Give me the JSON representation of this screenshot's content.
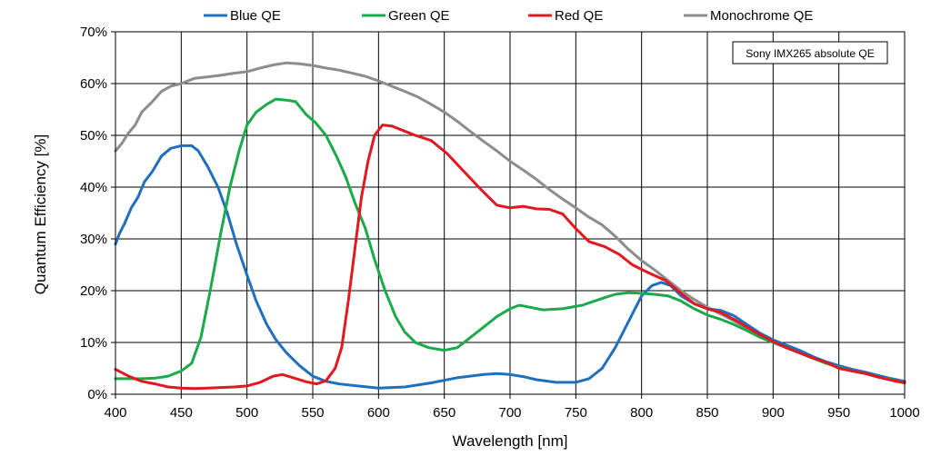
{
  "chart_data": {
    "type": "line",
    "xlabel": "Wavelength [nm]",
    "ylabel": "Quantum Efficiency [%]",
    "xlim": [
      400,
      1000
    ],
    "ylim": [
      0,
      70
    ],
    "xticks": [
      400,
      450,
      500,
      550,
      600,
      650,
      700,
      750,
      800,
      850,
      900,
      950,
      1000
    ],
    "yticks": [
      0,
      10,
      20,
      30,
      40,
      50,
      60,
      70
    ],
    "ytick_labels": [
      "0%",
      "10%",
      "20%",
      "30%",
      "40%",
      "50%",
      "60%",
      "70%"
    ],
    "grid": true,
    "legend_position": "top",
    "annotation": "Sony IMX265 absolute QE",
    "series": [
      {
        "name": "Blue QE",
        "color": "#1f6fbf",
        "points": [
          [
            400,
            29
          ],
          [
            403,
            31
          ],
          [
            407,
            33
          ],
          [
            412,
            36
          ],
          [
            417,
            38
          ],
          [
            422,
            41
          ],
          [
            428,
            43
          ],
          [
            435,
            46
          ],
          [
            442,
            47.5
          ],
          [
            450,
            48
          ],
          [
            458,
            48
          ],
          [
            463,
            47
          ],
          [
            470,
            44
          ],
          [
            478,
            40
          ],
          [
            485,
            35
          ],
          [
            492,
            29
          ],
          [
            500,
            23
          ],
          [
            507,
            18
          ],
          [
            515,
            13.5
          ],
          [
            522,
            10.5
          ],
          [
            530,
            8
          ],
          [
            540,
            5.5
          ],
          [
            550,
            3.5
          ],
          [
            560,
            2.5
          ],
          [
            570,
            2
          ],
          [
            580,
            1.7
          ],
          [
            600,
            1.2
          ],
          [
            620,
            1.4
          ],
          [
            640,
            2.2
          ],
          [
            660,
            3.2
          ],
          [
            680,
            3.8
          ],
          [
            690,
            4
          ],
          [
            700,
            3.8
          ],
          [
            710,
            3.4
          ],
          [
            720,
            2.8
          ],
          [
            735,
            2.3
          ],
          [
            750,
            2.3
          ],
          [
            760,
            3
          ],
          [
            770,
            5
          ],
          [
            780,
            9
          ],
          [
            790,
            14
          ],
          [
            800,
            19
          ],
          [
            808,
            21
          ],
          [
            815,
            21.6
          ],
          [
            822,
            21
          ],
          [
            830,
            19
          ],
          [
            840,
            17.5
          ],
          [
            850,
            16.5
          ],
          [
            860,
            16.2
          ],
          [
            870,
            15.2
          ],
          [
            880,
            13.5
          ],
          [
            890,
            11.8
          ],
          [
            900,
            10.5
          ],
          [
            910,
            9.5
          ],
          [
            920,
            8.5
          ],
          [
            930,
            7.3
          ],
          [
            940,
            6.3
          ],
          [
            950,
            5.5
          ],
          [
            960,
            4.8
          ],
          [
            970,
            4.2
          ],
          [
            980,
            3.6
          ],
          [
            990,
            3
          ],
          [
            1000,
            2.5
          ]
        ]
      },
      {
        "name": "Green QE",
        "color": "#1aaa4a",
        "points": [
          [
            400,
            3
          ],
          [
            410,
            3
          ],
          [
            420,
            3
          ],
          [
            430,
            3.1
          ],
          [
            440,
            3.5
          ],
          [
            450,
            4.5
          ],
          [
            458,
            6
          ],
          [
            465,
            11
          ],
          [
            472,
            20
          ],
          [
            480,
            31
          ],
          [
            487,
            40
          ],
          [
            494,
            47
          ],
          [
            500,
            52
          ],
          [
            507,
            54.5
          ],
          [
            515,
            56
          ],
          [
            522,
            57
          ],
          [
            530,
            56.8
          ],
          [
            537,
            56.5
          ],
          [
            545,
            54
          ],
          [
            552,
            52.5
          ],
          [
            560,
            50
          ],
          [
            568,
            46
          ],
          [
            575,
            42
          ],
          [
            582,
            37
          ],
          [
            590,
            32
          ],
          [
            597,
            26
          ],
          [
            605,
            20
          ],
          [
            613,
            15
          ],
          [
            620,
            12
          ],
          [
            628,
            10
          ],
          [
            638,
            9
          ],
          [
            650,
            8.5
          ],
          [
            660,
            9
          ],
          [
            670,
            11
          ],
          [
            680,
            13
          ],
          [
            690,
            15
          ],
          [
            700,
            16.5
          ],
          [
            707,
            17.2
          ],
          [
            715,
            16.8
          ],
          [
            725,
            16.3
          ],
          [
            740,
            16.5
          ],
          [
            755,
            17.2
          ],
          [
            770,
            18.5
          ],
          [
            780,
            19.3
          ],
          [
            790,
            19.6
          ],
          [
            800,
            19.5
          ],
          [
            810,
            19.3
          ],
          [
            820,
            19
          ],
          [
            830,
            18
          ],
          [
            840,
            16.5
          ],
          [
            850,
            15.3
          ],
          [
            860,
            14.5
          ],
          [
            870,
            13.5
          ],
          [
            880,
            12.3
          ],
          [
            890,
            11
          ],
          [
            900,
            10
          ],
          [
            910,
            9
          ],
          [
            920,
            8
          ],
          [
            930,
            7
          ],
          [
            940,
            6
          ],
          [
            950,
            5.2
          ],
          [
            960,
            4.5
          ],
          [
            970,
            4
          ],
          [
            980,
            3.3
          ],
          [
            990,
            2.8
          ],
          [
            1000,
            2.2
          ]
        ]
      },
      {
        "name": "Red QE",
        "color": "#e2171f",
        "points": [
          [
            400,
            4.8
          ],
          [
            410,
            3.5
          ],
          [
            420,
            2.5
          ],
          [
            430,
            2
          ],
          [
            440,
            1.4
          ],
          [
            450,
            1.2
          ],
          [
            460,
            1.1
          ],
          [
            470,
            1.2
          ],
          [
            480,
            1.3
          ],
          [
            490,
            1.4
          ],
          [
            500,
            1.6
          ],
          [
            510,
            2.3
          ],
          [
            520,
            3.5
          ],
          [
            527,
            3.8
          ],
          [
            535,
            3.2
          ],
          [
            545,
            2.4
          ],
          [
            553,
            2
          ],
          [
            560,
            2.6
          ],
          [
            567,
            5
          ],
          [
            572,
            9
          ],
          [
            577,
            18
          ],
          [
            582,
            28
          ],
          [
            587,
            38
          ],
          [
            592,
            45
          ],
          [
            597,
            50
          ],
          [
            603,
            52
          ],
          [
            610,
            51.8
          ],
          [
            618,
            51
          ],
          [
            628,
            50
          ],
          [
            640,
            49
          ],
          [
            652,
            46.5
          ],
          [
            665,
            43
          ],
          [
            678,
            39.5
          ],
          [
            690,
            36.5
          ],
          [
            700,
            36
          ],
          [
            710,
            36.3
          ],
          [
            720,
            35.8
          ],
          [
            730,
            35.7
          ],
          [
            740,
            34.8
          ],
          [
            750,
            32
          ],
          [
            760,
            29.5
          ],
          [
            772,
            28.5
          ],
          [
            783,
            27
          ],
          [
            793,
            25
          ],
          [
            805,
            23.5
          ],
          [
            818,
            22
          ],
          [
            830,
            19.5
          ],
          [
            840,
            17.5
          ],
          [
            850,
            16.5
          ],
          [
            860,
            15.8
          ],
          [
            870,
            14.5
          ],
          [
            880,
            13
          ],
          [
            890,
            11.5
          ],
          [
            900,
            10.2
          ],
          [
            910,
            9
          ],
          [
            920,
            8
          ],
          [
            930,
            7
          ],
          [
            940,
            6.2
          ],
          [
            950,
            5
          ],
          [
            960,
            4.5
          ],
          [
            970,
            4
          ],
          [
            980,
            3.3
          ],
          [
            990,
            2.7
          ],
          [
            1000,
            2.2
          ]
        ]
      },
      {
        "name": "Monochrome QE",
        "color": "#8c8c8c",
        "points": [
          [
            400,
            47
          ],
          [
            405,
            48.5
          ],
          [
            410,
            50.5
          ],
          [
            415,
            52
          ],
          [
            420,
            54.5
          ],
          [
            428,
            56.5
          ],
          [
            435,
            58.5
          ],
          [
            442,
            59.5
          ],
          [
            450,
            60
          ],
          [
            460,
            61
          ],
          [
            470,
            61.3
          ],
          [
            480,
            61.6
          ],
          [
            490,
            62
          ],
          [
            500,
            62.3
          ],
          [
            510,
            63
          ],
          [
            520,
            63.6
          ],
          [
            530,
            64
          ],
          [
            540,
            63.8
          ],
          [
            550,
            63.5
          ],
          [
            560,
            63
          ],
          [
            570,
            62.6
          ],
          [
            580,
            62
          ],
          [
            590,
            61.4
          ],
          [
            600,
            60.5
          ],
          [
            610,
            59.5
          ],
          [
            620,
            58.5
          ],
          [
            630,
            57.4
          ],
          [
            640,
            56
          ],
          [
            650,
            54.5
          ],
          [
            660,
            52.7
          ],
          [
            670,
            50.7
          ],
          [
            680,
            48.8
          ],
          [
            690,
            47
          ],
          [
            700,
            45
          ],
          [
            710,
            43.3
          ],
          [
            720,
            41.5
          ],
          [
            730,
            39.5
          ],
          [
            740,
            37.7
          ],
          [
            750,
            36
          ],
          [
            760,
            34.2
          ],
          [
            770,
            32.7
          ],
          [
            780,
            30.5
          ],
          [
            790,
            28
          ],
          [
            800,
            25.8
          ],
          [
            810,
            24
          ],
          [
            820,
            22
          ],
          [
            830,
            20
          ],
          [
            840,
            18.3
          ],
          [
            850,
            16.8
          ],
          [
            860,
            15.5
          ],
          [
            870,
            14.2
          ],
          [
            880,
            12.8
          ],
          [
            890,
            11.3
          ],
          [
            900,
            10
          ],
          [
            910,
            9
          ],
          [
            920,
            8
          ],
          [
            930,
            7
          ],
          [
            940,
            6.1
          ],
          [
            950,
            5.3
          ],
          [
            960,
            4.8
          ],
          [
            970,
            4.3
          ],
          [
            980,
            3.6
          ],
          [
            990,
            3
          ],
          [
            1000,
            2.5
          ]
        ]
      }
    ]
  }
}
